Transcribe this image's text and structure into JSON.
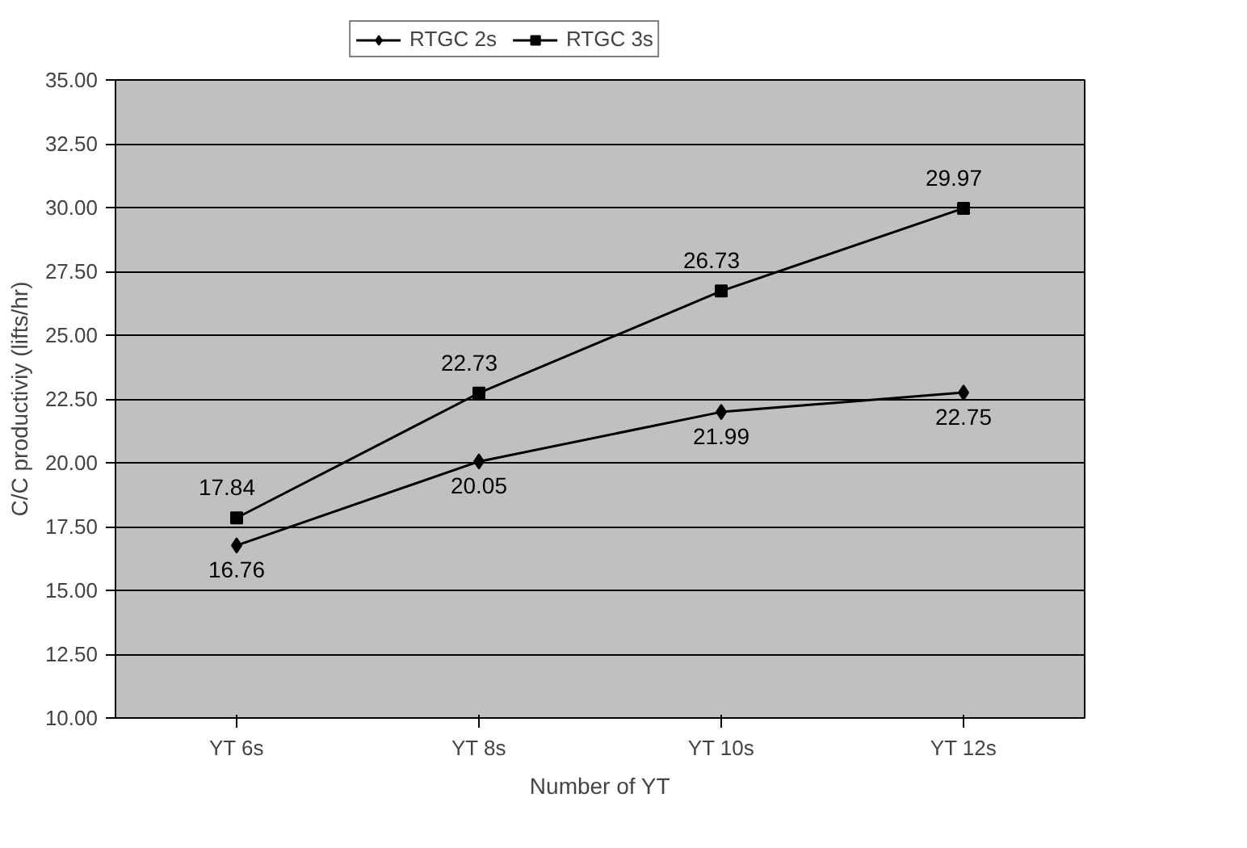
{
  "chart_data": {
    "type": "line",
    "xlabel": "Number of YT",
    "ylabel": "C/C productiviy (lifts/hr)",
    "categories": [
      "YT 6s",
      "YT 8s",
      "YT 10s",
      "YT 12s"
    ],
    "series": [
      {
        "name": "RTGC 2s",
        "color": "#000000",
        "marker": "diamond",
        "values": [
          16.76,
          20.05,
          21.99,
          22.75
        ]
      },
      {
        "name": "RTGC 3s",
        "color": "#000000",
        "marker": "square",
        "values": [
          17.84,
          22.73,
          26.73,
          29.97
        ]
      }
    ],
    "ylim": [
      10,
      35
    ],
    "yticks": [
      {
        "value": 10,
        "label": "10.00"
      },
      {
        "value": 12.5,
        "label": "12.50"
      },
      {
        "value": 15,
        "label": "15.00"
      },
      {
        "value": 17.5,
        "label": "17.50"
      },
      {
        "value": 20,
        "label": "20.00"
      },
      {
        "value": 22.5,
        "label": "22.50"
      },
      {
        "value": 25,
        "label": "25.00"
      },
      {
        "value": 27.5,
        "label": "27.50"
      },
      {
        "value": 30,
        "label": "30.00"
      },
      {
        "value": 32.5,
        "label": "32.50"
      },
      {
        "value": 35,
        "label": "35.00"
      }
    ],
    "grid": "y",
    "legend": "top",
    "data_labels": true,
    "line_style": "solid"
  }
}
